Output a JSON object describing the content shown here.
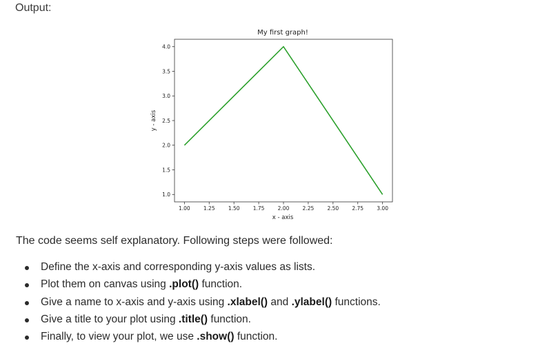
{
  "page": {
    "output_label": "Output:",
    "intro_text": "The code seems self explanatory. Following steps were followed:",
    "steps": [
      {
        "before": "Define the x-axis and corresponding y-axis values as lists.",
        "code": "",
        "after": ""
      },
      {
        "before": "Plot them on canvas using ",
        "code": ".plot()",
        "after": " function."
      },
      {
        "before": "Give a name to x-axis and y-axis using ",
        "code": ".xlabel()",
        "after": " and ",
        "code2": ".ylabel()",
        "after2": " functions."
      },
      {
        "before": "Give a title to your plot using ",
        "code": ".title()",
        "after": " function."
      },
      {
        "before": "Finally, to view your plot, we use ",
        "code": ".show()",
        "after": " function."
      }
    ]
  },
  "chart_data": {
    "type": "line",
    "title": "My first graph!",
    "xlabel": "x - axis",
    "ylabel": "y - axis",
    "x": [
      1,
      2,
      3
    ],
    "series": [
      {
        "values": [
          2,
          4,
          1
        ],
        "color": "#2ca02c"
      }
    ],
    "xlim": [
      0.9,
      3.1
    ],
    "ylim": [
      0.85,
      4.15
    ],
    "xticks": [
      1.0,
      1.25,
      1.5,
      1.75,
      2.0,
      2.25,
      2.5,
      2.75,
      3.0
    ],
    "xtick_labels": [
      "1.00",
      "1.25",
      "1.50",
      "1.75",
      "2.00",
      "2.25",
      "2.50",
      "2.75",
      "3.00"
    ],
    "yticks": [
      1.0,
      1.5,
      2.0,
      2.5,
      3.0,
      3.5,
      4.0
    ],
    "ytick_labels": [
      "1.0",
      "1.5",
      "2.0",
      "2.5",
      "3.0",
      "3.5",
      "4.0"
    ],
    "grid": false
  }
}
